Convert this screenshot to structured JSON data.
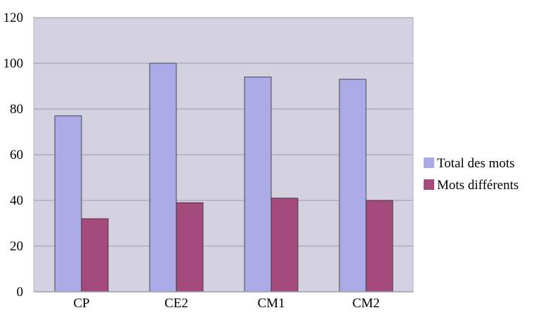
{
  "chart_data": {
    "type": "bar",
    "categories": [
      "CP",
      "CE2",
      "CM1",
      "CM2"
    ],
    "series": [
      {
        "name": "Total des mots",
        "values": [
          77,
          100,
          94,
          93
        ],
        "color": "#aaaae6"
      },
      {
        "name": "Mots différents",
        "values": [
          32,
          39,
          41,
          40
        ],
        "color": "#a44a7c"
      }
    ],
    "title": "",
    "xlabel": "",
    "ylabel": "",
    "ylim": [
      0,
      120
    ],
    "yticks": [
      0,
      20,
      40,
      60,
      80,
      100,
      120
    ],
    "grid": true,
    "legend_position": "right",
    "plot_background": "#d4d1e0",
    "gridline_color": "#9e9cae"
  }
}
